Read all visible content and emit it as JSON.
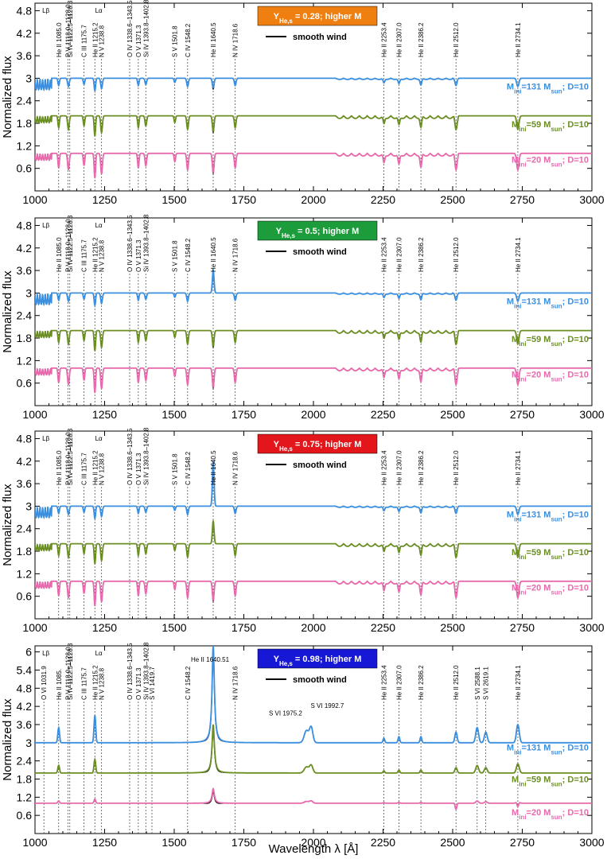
{
  "chart_data": {
    "type": "line",
    "shared": {
      "xlabel": "Wavelength  λ [Å]",
      "ylabel": "Normalized flux",
      "xlim": [
        1000,
        3000
      ],
      "xticks": [
        1000,
        1250,
        1500,
        1750,
        2000,
        2250,
        2500,
        2750,
        3000
      ],
      "legend_smooth": "smooth wind",
      "series_colors": {
        "m131": "#3b8fe0",
        "m59": "#6b8e23",
        "m20": "#e86aad",
        "smooth": "#000000"
      }
    },
    "panels": [
      {
        "badge": "Y_He,s = 0.28; higher Ṁ",
        "badge_main": "Y",
        "badge_sub": "He,s",
        "badge_rest": " = 0.28; higher M",
        "badge_color": "#f07f11",
        "ylim": [
          0,
          5.0
        ],
        "yticks": [
          "0.6",
          "1.2",
          "1.8",
          "2.4",
          "3",
          "3.6",
          "4.2",
          "4.8"
        ],
        "labels": {
          "m131": "M_ini=131 M_sun; D=10",
          "m59": "M_ini=59 M_sun; D=10",
          "m20": "M_ini=20 M_sun; D=10"
        },
        "lines": [
          "He II 1085.0",
          "P V 1118.0–1128.0",
          "Si IV 1122.5–1128.3",
          "C III 1175.7",
          "N V 1238.8",
          "He II 1215.2",
          "O IV 1338.6–1343.5",
          "O V 1371.3",
          "Si IV 1393.8–1402.8",
          "S V 1501.8",
          "C IV 1548.2",
          "He II 1640.5",
          "N IV 1718.6",
          "He II 2253.4",
          "He II 2307.0",
          "He II 2386.2",
          "He II 2512.0",
          "He II 2734.1"
        ],
        "emission": 0
      },
      {
        "badge": "Y_He,s = 0.5; higher Ṁ",
        "badge_main": "Y",
        "badge_sub": "He,s",
        "badge_rest": " = 0.5; higher M",
        "badge_color": "#1c9c3a",
        "ylim": [
          0,
          5.0
        ],
        "yticks": [
          "0.6",
          "1.2",
          "1.8",
          "2.4",
          "3",
          "3.6",
          "4.2",
          "4.8"
        ],
        "labels": {
          "m131": "M_ini=131 M_sun; D=10",
          "m59": "M_ini=59 M_sun; D=10",
          "m20": "M_ini=20 M_sun; D=10"
        },
        "lines": [
          "He II 1085.0",
          "P V 1118.0–1128.0",
          "Si IV 1122.5–1128.3",
          "C III 1175.7",
          "N V 1238.8",
          "He II 1215.2",
          "O IV 1338.6–1343.5",
          "O V 1371.3",
          "Si IV 1393.8–1402.8",
          "S V 1501.8",
          "C IV 1548.2",
          "He II 1640.5",
          "N IV 1718.6",
          "He II 2253.4",
          "He II 2307.0",
          "He II 2386.2",
          "He II 2512.0",
          "He II 2734.1"
        ],
        "emission": 1
      },
      {
        "badge": "Y_He,s = 0.75; higher Ṁ",
        "badge_main": "Y",
        "badge_sub": "He,s",
        "badge_rest": " = 0.75; higher M",
        "badge_color": "#e3171b",
        "ylim": [
          0,
          5.0
        ],
        "yticks": [
          "0.6",
          "1.2",
          "1.8",
          "2.4",
          "3",
          "3.6",
          "4.2",
          "4.8"
        ],
        "labels": {
          "m131": "M_ini=131 M_sun; D=10",
          "m59": "M_ini=59 M_sun; D=10",
          "m20": "M_ini=20 M_sun; D=10"
        },
        "lines": [
          "He II 1085.0",
          "P V 1118.0–1128.0",
          "Si IV 1122.5–1128.3",
          "C III 1175.7",
          "N V 1238.8",
          "He II 1215.2",
          "O IV 1338.6–1343.5",
          "O V 1371.3",
          "Si IV 1393.8–1402.8",
          "S V 1501.8",
          "C IV 1548.2",
          "He II 1640.5",
          "N IV 1718.6",
          "He II 2253.4",
          "He II 2307.0",
          "He II 2386.2",
          "He II 2512.0",
          "He II 2734.1"
        ],
        "emission": 2
      },
      {
        "badge": "Y_He,s = 0.98; higher Ṁ",
        "badge_main": "Y",
        "badge_sub": "He,s",
        "badge_rest": " = 0.98; higher M",
        "badge_color": "#1717d6",
        "ylim": [
          0,
          6.2
        ],
        "yticks": [
          "0.6",
          "1.2",
          "1.8",
          "2.4",
          "3",
          "3.6",
          "4.2",
          "4.8",
          "5.4",
          "6"
        ],
        "labels": {
          "m131": "M_ini=131 M_sun; D=10",
          "m59": "M_ini=59 M_sun; D=10",
          "m20": "M_ini=20 M_sun; D=10"
        },
        "lines": [
          "O VI 1031.9",
          "He II 1085.",
          "P V 1118.0–1128.0",
          "Si IV 1122.5–1128.3",
          "C III 1175.7",
          "He II 1215.2",
          "N V 1238.8",
          "O IV 1338.6–1343.5",
          "O V 1371.3",
          "Si IV 1393.8–1402.8",
          "S VI 1419.7",
          "C IV 1548.2",
          "N IV 1718.6",
          "He II 2253.4",
          "He II 2307.0",
          "He II 2386.2",
          "He II 2512.0",
          "S VI 2588.1",
          "S VI 2619.1",
          "He II 2734.1"
        ],
        "extra_labels": [
          "He II 1640.51",
          "S VI 1975.2",
          "S VI 1992.7"
        ],
        "emission": 3
      }
    ]
  }
}
